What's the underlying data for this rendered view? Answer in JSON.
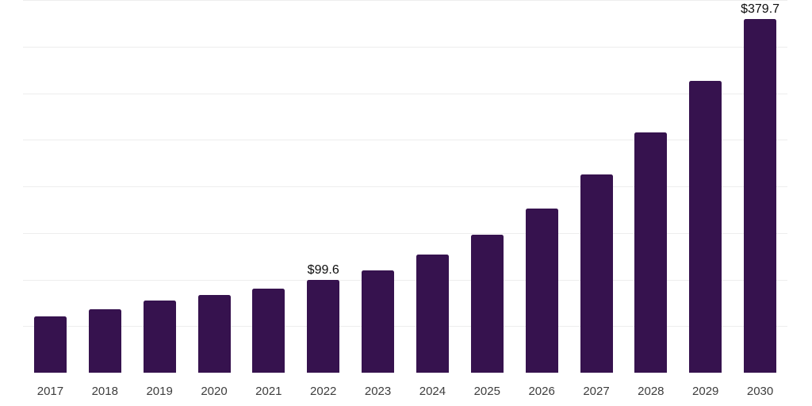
{
  "chart_data": {
    "type": "bar",
    "categories": [
      "2017",
      "2018",
      "2019",
      "2020",
      "2021",
      "2022",
      "2023",
      "2024",
      "2025",
      "2026",
      "2027",
      "2028",
      "2029",
      "2030"
    ],
    "values": [
      61.1,
      68.8,
      77.6,
      83.6,
      91.0,
      99.6,
      110.4,
      127.3,
      148.1,
      176.3,
      213.2,
      258.5,
      314.0,
      379.7
    ],
    "annotations": [
      {
        "category": "2022",
        "text": "$99.6"
      },
      {
        "category": "2030",
        "text": "$379.7"
      }
    ],
    "title": "",
    "xlabel": "",
    "ylabel": "",
    "ylim": [
      0,
      400
    ],
    "grid_step": 50,
    "grid": true,
    "legend": false,
    "y_tick_labels_visible": false,
    "colors": {
      "bar": "#36124e",
      "grid": "#ededed",
      "axis": "#333333",
      "value_label": "#0d0d0d",
      "tick_label": "#3d3d3d",
      "background": "#ffffff"
    }
  }
}
